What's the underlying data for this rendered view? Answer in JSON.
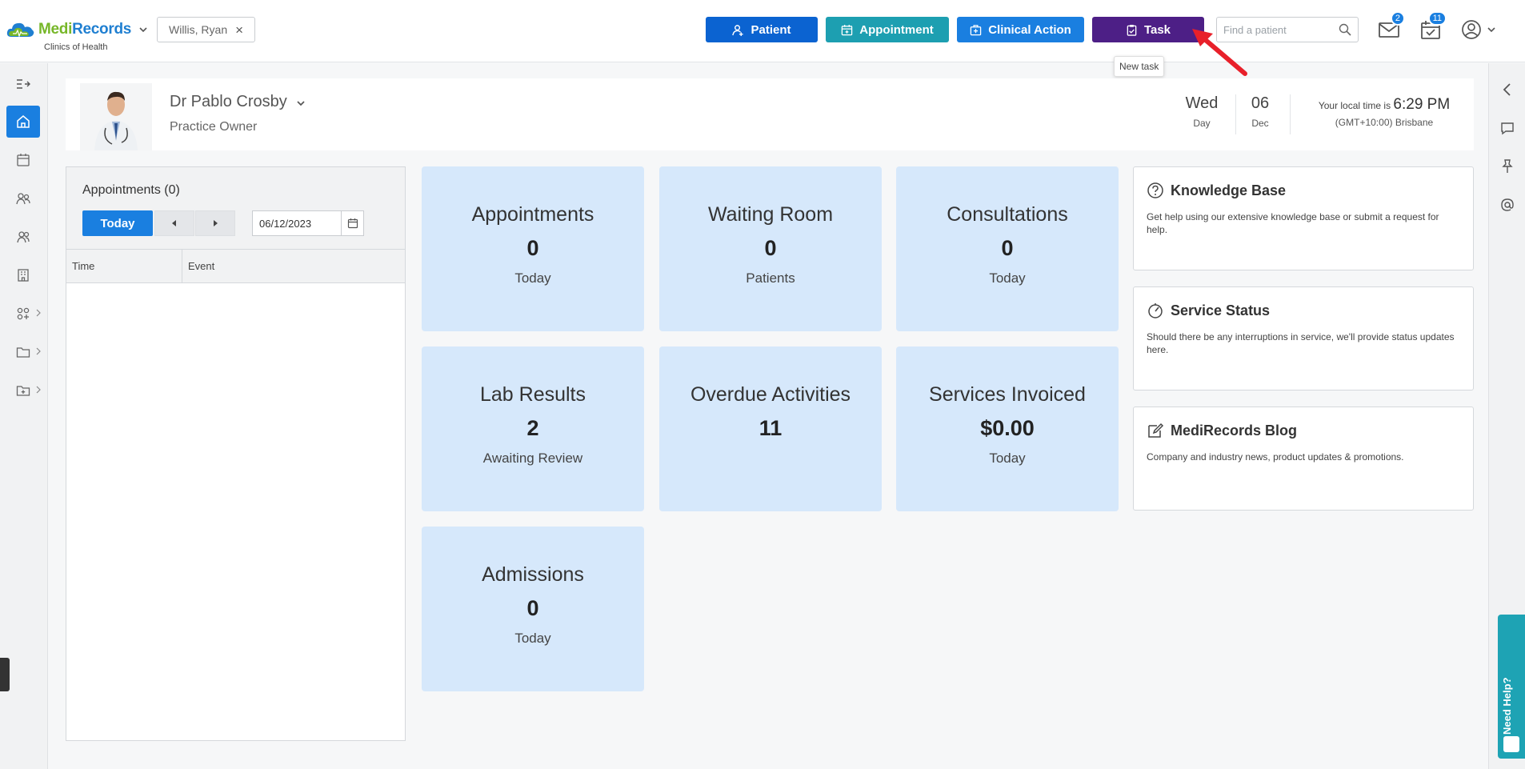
{
  "app": {
    "logo_left": "Medi",
    "logo_right": "Records",
    "clinic": "Clinics of Health"
  },
  "header": {
    "patient_chip": "Willis, Ryan",
    "buttons": {
      "patient": "Patient",
      "appointment": "Appointment",
      "clinical_action": "Clinical Action",
      "task": "Task"
    },
    "search_placeholder": "Find a patient",
    "mail_count": "2",
    "calendar_count": "11",
    "task_tooltip": "New task"
  },
  "profile": {
    "name": "Dr Pablo Crosby",
    "role": "Practice Owner",
    "day_value": "Wed",
    "day_label": "Day",
    "date_value": "06",
    "date_label": "Dec",
    "local_time_label": "Your local time is",
    "local_time": "6:29 PM",
    "timezone": "(GMT+10:00) Brisbane"
  },
  "appointments_panel": {
    "title": "Appointments (0)",
    "today_label": "Today",
    "date": "06/12/2023",
    "columns": [
      "Time",
      "Event"
    ]
  },
  "tiles": [
    {
      "title": "Appointments",
      "value": "0",
      "sub": "Today"
    },
    {
      "title": "Waiting Room",
      "value": "0",
      "sub": "Patients"
    },
    {
      "title": "Consultations",
      "value": "0",
      "sub": "Today"
    },
    {
      "title": "Lab Results",
      "value": "2",
      "sub": "Awaiting Review"
    },
    {
      "title": "Overdue Activities",
      "value": "11",
      "sub": ""
    },
    {
      "title": "Services Invoiced",
      "value": "$0.00",
      "sub": "Today"
    },
    {
      "title": "Admissions",
      "value": "0",
      "sub": "Today"
    }
  ],
  "cards": [
    {
      "title": "Knowledge Base",
      "body": "Get help using our extensive knowledge base or submit a request for help."
    },
    {
      "title": "Service Status",
      "body": "Should there be any interruptions in service, we'll provide status updates here."
    },
    {
      "title": "MediRecords Blog",
      "body": "Company and industry news, product updates & promotions."
    }
  ],
  "need_help": "Need Help?",
  "colors": {
    "primary": "#1a7fe0",
    "patient_btn": "#0b63d1",
    "appointment_btn": "#1d9fb1",
    "task_btn": "#4d1f86",
    "tile_bg": "#d6e8fb",
    "need_help": "#1ea3b4"
  }
}
